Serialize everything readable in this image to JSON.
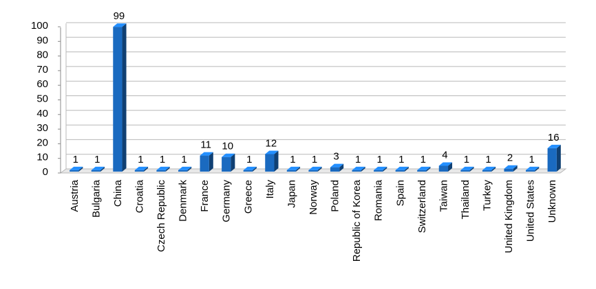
{
  "chart_data": {
    "type": "bar",
    "categories": [
      "Austria",
      "Bulgaria",
      "China",
      "Croatia",
      "Czech Republic",
      "Denmark",
      "France",
      "Germany",
      "Greece",
      "Italy",
      "Japan",
      "Norway",
      "Poland",
      "Republic of Korea",
      "Romania",
      "Spain",
      "Switzerland",
      "Taiwan",
      "Thailand",
      "Turkey",
      "United Kingdom",
      "United States",
      "Unknown"
    ],
    "values": [
      1,
      1,
      99,
      1,
      1,
      1,
      11,
      10,
      1,
      12,
      1,
      1,
      3,
      1,
      1,
      1,
      1,
      4,
      1,
      1,
      2,
      1,
      16
    ],
    "color": "#1a6ac0",
    "ylim": [
      0,
      100
    ],
    "yticks": [
      0,
      10,
      20,
      30,
      40,
      50,
      60,
      70,
      80,
      90,
      100
    ],
    "grid": true
  }
}
